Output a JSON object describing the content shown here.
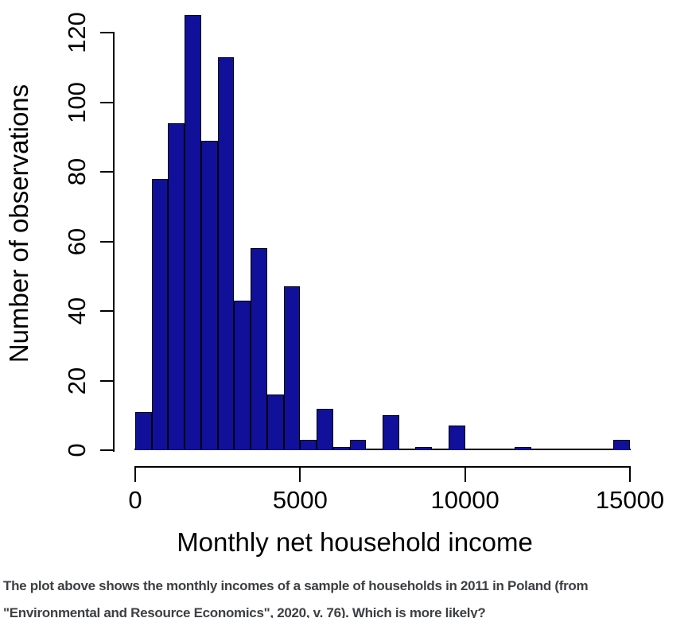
{
  "chart_data": {
    "type": "bar",
    "subtype": "histogram",
    "title": "",
    "xlabel": "Monthly net household income",
    "ylabel": "Number of observations",
    "bin_start": 0,
    "bin_width": 500,
    "counts": [
      11,
      78,
      94,
      125,
      89,
      113,
      43,
      58,
      16,
      47,
      3,
      12,
      1,
      3,
      0,
      10,
      0,
      1,
      0,
      7,
      0,
      0,
      0,
      1,
      0,
      0,
      0,
      0,
      0,
      3
    ],
    "x_ticks": [
      0,
      5000,
      10000,
      15000
    ],
    "y_ticks": [
      0,
      20,
      40,
      60,
      80,
      100,
      120
    ],
    "xlim": [
      0,
      15000
    ],
    "ylim": [
      0,
      125
    ],
    "grid": false,
    "legend": false,
    "bar_color": "#10109b",
    "bar_border_color": "#000000",
    "axis_color": "#000000"
  },
  "caption": {
    "line1": "The plot above shows the monthly incomes of a sample of households in 2011 in Poland (from",
    "line2": "\"Environmental and Resource Economics\", 2020, v. 76). Which is more likely?",
    "color": "#3d4043"
  }
}
